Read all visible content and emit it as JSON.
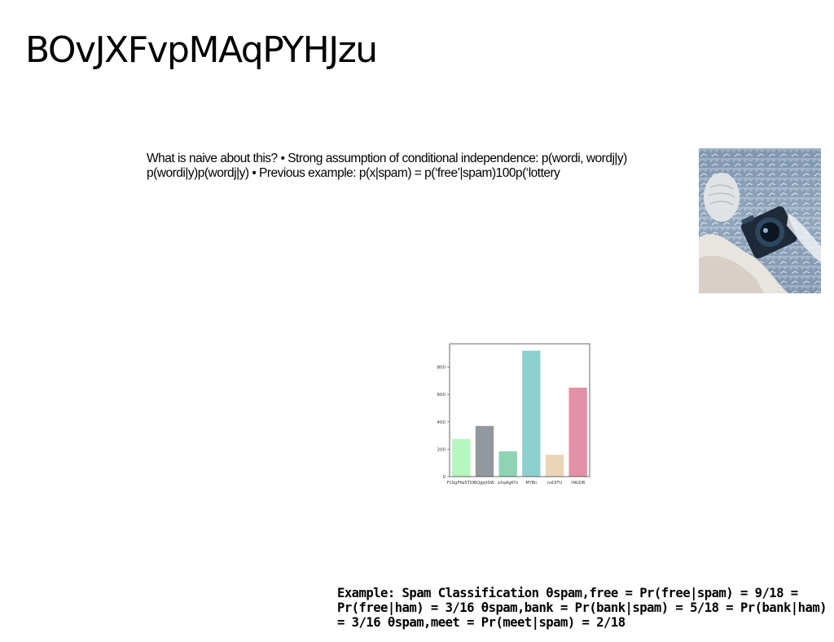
{
  "slide": {
    "title": "BOvJXFvpMAqPYHJzu",
    "body_text": "What is naive about this? • Strong assumption of conditional independence: p(wordi, wordj|y) p(wordi|y)p(wordj|y) • Previous example: p(x|spam) = p(‘free’|spam)100p(‘lottery",
    "example_text": "Example: Spam Classification θspam,free = Pr(free|spam) = 9/18 = Pr(free|ham) = 3/16 θspam,bank = Pr(bank|spam) = 5/18 = Pr(bank|ham) = 3/16 θspam,meet = Pr(meet|spam) = 2/18"
  },
  "photo": {
    "icon": "snowy-rocks-with-camera-photo"
  },
  "chart_data": {
    "type": "bar",
    "categories": [
      "FCbgFKeSTOK",
      "tQgejtSW",
      "eXqAgKYs",
      "MYBn",
      "nxDITU",
      "rNGDB"
    ],
    "values": [
      275,
      370,
      185,
      920,
      160,
      650
    ],
    "colors": [
      "#b5f5c0",
      "#93979e",
      "#8fd2b5",
      "#8ecfcf",
      "#ebd5b9",
      "#e290a8"
    ],
    "yticks": [
      0,
      200,
      400,
      600,
      800
    ],
    "ylim": [
      0,
      970
    ],
    "grid": false,
    "legend": "none"
  }
}
